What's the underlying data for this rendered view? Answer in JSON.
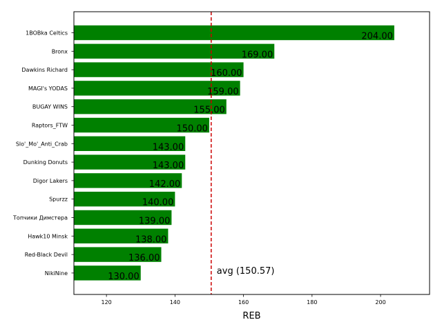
{
  "chart_data": {
    "type": "bar",
    "orientation": "horizontal",
    "categories": [
      "1BOBka Celtics",
      "Bronx",
      "Dawkins Richard",
      "MAGI's YODAS",
      "BUGAY WINS",
      "Raptors_FTW",
      "Slo'_Mo'_Anti_Crab",
      "Dunking Donuts",
      "Digor Lakers",
      "Spurzz",
      "Топчики Димстера",
      "Hawk10 Minsk",
      "Red-Black Devil",
      "NikiNine"
    ],
    "values": [
      204,
      169,
      160,
      159,
      155,
      150,
      143,
      143,
      142,
      140,
      139,
      138,
      136,
      130
    ],
    "value_labels": [
      "204.00",
      "169.00",
      "160.00",
      "159.00",
      "155.00",
      "150.00",
      "143.00",
      "143.00",
      "142.00",
      "140.00",
      "139.00",
      "138.00",
      "136.00",
      "130.00"
    ],
    "xlabel": "REB",
    "xlim": [
      110.5,
      214.3
    ],
    "xticks": [
      120,
      140,
      160,
      180,
      200
    ],
    "bar_color": "#008000",
    "average": {
      "value": 150.57,
      "label": "avg (150.57)",
      "color": "#cc0000",
      "style": "dashed"
    },
    "grid": false
  }
}
